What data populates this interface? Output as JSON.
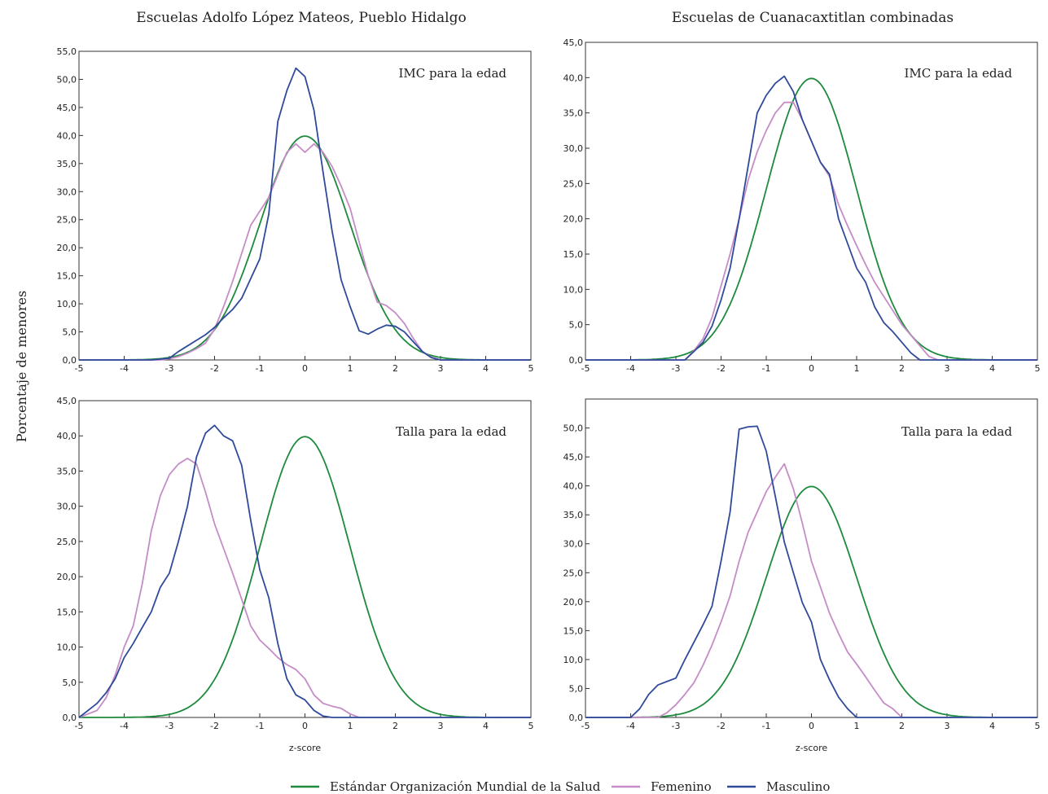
{
  "colors": {
    "oms": "#1e8a3c",
    "femenino": "#c58cc8",
    "masculino": "#2f4a9a"
  },
  "figure": {
    "col_titles": [
      "Escuelas Adolfo López Mateos, Pueblo Hidalgo",
      "Escuelas de Cuanacaxtitlan combinadas"
    ],
    "ylabel": "Porcentaje de menores"
  },
  "legend": [
    {
      "name": "Estándar Organización Mundial de la Salud",
      "color": "#1e8a3c"
    },
    {
      "name": "Femenino",
      "color": "#c58cc8"
    },
    {
      "name": "Masculino",
      "color": "#2f4a9a"
    }
  ],
  "chart_data": [
    {
      "type": "line",
      "panel": "top-left",
      "label": "IMC para la edad",
      "xlim": [
        -5,
        5
      ],
      "ylim": [
        0,
        55
      ],
      "xticks": [
        -5,
        -4,
        -3,
        -2,
        -1,
        0,
        1,
        2,
        3,
        4,
        5
      ],
      "yticks": [
        "0,0",
        "5,0",
        "10,0",
        "15,0",
        "20,0",
        "25,0",
        "30,0",
        "35,0",
        "40,0",
        "45,0",
        "50,0",
        "55,0"
      ],
      "xlabel": "",
      "series": [
        {
          "name": "Estándar Organización Mundial de la Salud",
          "color": "#1e8a3c",
          "normal": {
            "mean": 0,
            "sd": 1
          }
        },
        {
          "name": "Femenino",
          "color": "#c58cc8",
          "x": [
            -5,
            -3.2,
            -3,
            -2.8,
            -2.6,
            -2.4,
            -2.2,
            -2,
            -1.8,
            -1.6,
            -1.4,
            -1.2,
            -1,
            -0.8,
            -0.6,
            -0.4,
            -0.2,
            0,
            0.2,
            0.4,
            0.6,
            0.8,
            1,
            1.2,
            1.4,
            1.6,
            1.8,
            2,
            2.2,
            2.4,
            2.6,
            2.8,
            3,
            3.2,
            5
          ],
          "y": [
            0,
            0,
            0.2,
            0.6,
            1.2,
            2,
            3,
            5.5,
            9.5,
            14,
            19,
            24,
            26.5,
            29,
            33,
            37,
            38.5,
            37,
            38.5,
            37,
            34.5,
            31,
            27,
            21,
            15,
            10.3,
            9.7,
            8.4,
            6.5,
            3.8,
            1.5,
            0.5,
            0,
            0,
            0
          ]
        },
        {
          "name": "Masculino",
          "color": "#2f4a9a",
          "x": [
            -5,
            -3.4,
            -3,
            -2.8,
            -2.6,
            -2.4,
            -2.2,
            -2,
            -1.8,
            -1.6,
            -1.4,
            -1.2,
            -1,
            -0.8,
            -0.6,
            -0.4,
            -0.2,
            0,
            0.2,
            0.4,
            0.6,
            0.8,
            1,
            1.2,
            1.4,
            1.6,
            1.8,
            2,
            2.2,
            2.4,
            2.6,
            2.8,
            3,
            3.2,
            5
          ],
          "y": [
            0,
            0,
            0.3,
            1.5,
            2.5,
            3.5,
            4.5,
            5.8,
            7.5,
            9,
            11,
            14.5,
            18,
            26,
            42.5,
            48,
            52,
            50.5,
            44.5,
            33.5,
            23,
            14.3,
            9.5,
            5.2,
            4.6,
            5.5,
            6.2,
            6,
            5,
            3.2,
            1.5,
            0.4,
            0,
            0,
            0
          ]
        }
      ]
    },
    {
      "type": "line",
      "panel": "top-right",
      "label": "IMC para la edad",
      "xlim": [
        -5,
        5
      ],
      "ylim": [
        0,
        45
      ],
      "xticks": [
        -5,
        -4,
        -3,
        -2,
        -1,
        0,
        1,
        2,
        3,
        4,
        5
      ],
      "yticks": [
        "0,0",
        "5,0",
        "10,0",
        "15,0",
        "20,0",
        "25,0",
        "30,0",
        "35,0",
        "40,0",
        "45,0"
      ],
      "xlabel": "",
      "series": [
        {
          "name": "Estándar Organización Mundial de la Salud",
          "color": "#1e8a3c",
          "normal": {
            "mean": 0,
            "sd": 1
          }
        },
        {
          "name": "Femenino",
          "color": "#c58cc8",
          "x": [
            -5,
            -2.8,
            -2.6,
            -2.4,
            -2.2,
            -2,
            -1.8,
            -1.6,
            -1.4,
            -1.2,
            -1,
            -0.8,
            -0.6,
            -0.4,
            -0.2,
            0,
            0.2,
            0.4,
            0.6,
            0.8,
            1,
            1.2,
            1.4,
            1.6,
            1.8,
            2,
            2.2,
            2.4,
            2.6,
            2.8,
            5
          ],
          "y": [
            0,
            0,
            1.3,
            3,
            6,
            10.5,
            15,
            20,
            25.5,
            29.5,
            32.5,
            35,
            36.5,
            36.5,
            34,
            31,
            28,
            26,
            22,
            19,
            16.2,
            13.5,
            11,
            9,
            7,
            5,
            3.5,
            2,
            0.5,
            0,
            0
          ]
        },
        {
          "name": "Masculino",
          "color": "#2f4a9a",
          "x": [
            -5,
            -2.8,
            -2.6,
            -2.4,
            -2.2,
            -2,
            -1.8,
            -1.6,
            -1.4,
            -1.2,
            -1,
            -0.8,
            -0.6,
            -0.4,
            -0.2,
            0,
            0.2,
            0.4,
            0.6,
            0.8,
            1,
            1.2,
            1.4,
            1.6,
            1.8,
            2,
            2.2,
            2.4,
            2.6,
            5
          ],
          "y": [
            0,
            0,
            1.2,
            2.5,
            4.8,
            8.5,
            13,
            20,
            27.5,
            35,
            37.5,
            39.2,
            40.2,
            38,
            34,
            31,
            28,
            26.3,
            20,
            16.5,
            13,
            11,
            7.5,
            5.3,
            4,
            2.5,
            1,
            0,
            0,
            0
          ]
        }
      ]
    },
    {
      "type": "line",
      "panel": "bottom-left",
      "label": "Talla para la edad",
      "xlim": [
        -5,
        5
      ],
      "ylim": [
        0,
        45
      ],
      "xticks": [
        -5,
        -4,
        -3,
        -2,
        -1,
        0,
        1,
        2,
        3,
        4,
        5
      ],
      "yticks": [
        "0,0",
        "5,0",
        "10,0",
        "15,0",
        "20,0",
        "25,0",
        "30,0",
        "35,0",
        "40,0",
        "45,0"
      ],
      "xlabel": "z-score",
      "series": [
        {
          "name": "Estándar Organización Mundial de la Salud",
          "color": "#1e8a3c",
          "normal": {
            "mean": 0,
            "sd": 1
          }
        },
        {
          "name": "Femenino",
          "color": "#c58cc8",
          "x": [
            -5,
            -4.8,
            -4.6,
            -4.4,
            -4.2,
            -4,
            -3.8,
            -3.6,
            -3.4,
            -3.2,
            -3,
            -2.8,
            -2.6,
            -2.4,
            -2.2,
            -2,
            -1.8,
            -1.6,
            -1.4,
            -1.2,
            -1,
            -0.8,
            -0.6,
            -0.4,
            -0.2,
            0,
            0.2,
            0.4,
            0.6,
            0.8,
            1,
            1.2,
            1.4,
            5
          ],
          "y": [
            0,
            0.5,
            1,
            2.8,
            6,
            10,
            13,
            19,
            26.5,
            31.5,
            34.5,
            36,
            36.8,
            36,
            32,
            27.5,
            24,
            20.5,
            16.8,
            13,
            11,
            9.8,
            8.5,
            7.5,
            6.8,
            5.5,
            3.2,
            2,
            1.6,
            1.3,
            0.5,
            0,
            0,
            0
          ]
        },
        {
          "name": "Masculino",
          "color": "#2f4a9a",
          "x": [
            -5,
            -4.8,
            -4.6,
            -4.4,
            -4.2,
            -4,
            -3.8,
            -3.6,
            -3.4,
            -3.2,
            -3,
            -2.8,
            -2.6,
            -2.4,
            -2.2,
            -2,
            -1.8,
            -1.6,
            -1.4,
            -1.2,
            -1,
            -0.8,
            -0.6,
            -0.4,
            -0.2,
            0,
            0.2,
            0.4,
            0.6,
            0.8,
            5
          ],
          "y": [
            0,
            1,
            2,
            3.5,
            5.5,
            8.5,
            10.5,
            12.8,
            15,
            18.5,
            20.5,
            25,
            30,
            37,
            40.4,
            41.5,
            40,
            39.3,
            35.8,
            28,
            21,
            17,
            10.5,
            5.5,
            3.2,
            2.5,
            1,
            0.2,
            0,
            0,
            0
          ]
        }
      ]
    },
    {
      "type": "line",
      "panel": "bottom-right",
      "label": "Talla para la edad",
      "xlim": [
        -5,
        5
      ],
      "ylim": [
        0,
        55
      ],
      "xticks": [
        -5,
        -4,
        -3,
        -2,
        -1,
        0,
        1,
        2,
        3,
        4,
        5
      ],
      "yticks": [
        "0,0",
        "5,0",
        "10,0",
        "15,0",
        "20,0",
        "25,0",
        "30,0",
        "35,0",
        "40,0",
        "45,0",
        "50,0"
      ],
      "xlabel": "z-score",
      "series": [
        {
          "name": "Estándar Organización Mundial de la Salud",
          "color": "#1e8a3c",
          "normal": {
            "mean": 0,
            "sd": 1
          }
        },
        {
          "name": "Femenino",
          "color": "#c58cc8",
          "x": [
            -5,
            -3.4,
            -3.2,
            -3,
            -2.8,
            -2.6,
            -2.4,
            -2.2,
            -2,
            -1.8,
            -1.6,
            -1.4,
            -1.2,
            -1,
            -0.8,
            -0.6,
            -0.4,
            -0.2,
            0,
            0.2,
            0.4,
            0.6,
            0.8,
            1,
            1.2,
            1.4,
            1.6,
            1.8,
            2,
            5
          ],
          "y": [
            0,
            0,
            0.8,
            2.2,
            4,
            6,
            9,
            12.5,
            16.5,
            21,
            27,
            32,
            35.5,
            39,
            41.5,
            43.8,
            39.5,
            33.5,
            27,
            22.5,
            18,
            14.5,
            11.3,
            9.2,
            7,
            4.7,
            2.5,
            1.5,
            0,
            0
          ]
        },
        {
          "name": "Masculino",
          "color": "#2f4a9a",
          "x": [
            -5,
            -4,
            -3.8,
            -3.6,
            -3.4,
            -3.2,
            -3,
            -2.8,
            -2.6,
            -2.4,
            -2.2,
            -2,
            -1.8,
            -1.6,
            -1.4,
            -1.2,
            -1,
            -0.8,
            -0.6,
            -0.4,
            -0.2,
            0,
            0.2,
            0.4,
            0.6,
            0.8,
            1,
            5
          ],
          "y": [
            0,
            0,
            1.5,
            4,
            5.6,
            6.2,
            6.8,
            10,
            13,
            16,
            19.2,
            27,
            35.5,
            49.8,
            50.2,
            50.3,
            46,
            38.2,
            30.3,
            25,
            19.8,
            16.5,
            10,
            6.5,
            3.5,
            1.5,
            0,
            0
          ]
        }
      ]
    }
  ]
}
